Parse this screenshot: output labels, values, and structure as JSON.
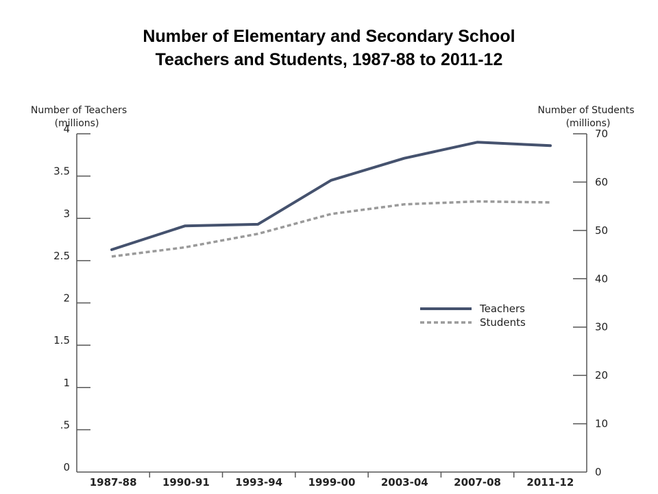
{
  "chart_data": {
    "type": "line",
    "title_line1": "Number of Elementary and Secondary School",
    "title_line2": "Teachers and Students, 1987-88 to 2011-12",
    "left_axis_title_line1": "Number of Teachers",
    "left_axis_title_line2": "(millions)",
    "right_axis_title_line1": "Number of Students",
    "right_axis_title_line2": "(millions)",
    "categories": [
      "1987-88",
      "1990-91",
      "1993-94",
      "1999-00",
      "2003-04",
      "2007-08",
      "2011-12"
    ],
    "left_ticks": [
      "0",
      ".5",
      "1",
      "1.5",
      "2",
      "2.5",
      "3",
      "3.5",
      "4"
    ],
    "left_tick_values": [
      0,
      0.5,
      1,
      1.5,
      2,
      2.5,
      3,
      3.5,
      4
    ],
    "right_ticks": [
      "0",
      "10",
      "20",
      "30",
      "40",
      "50",
      "60",
      "70"
    ],
    "right_tick_values": [
      0,
      10,
      20,
      30,
      40,
      50,
      60,
      70
    ],
    "left_ylim": [
      0,
      4
    ],
    "right_ylim": [
      0,
      70
    ],
    "series": [
      {
        "name": "Teachers",
        "axis": "left",
        "color": "#45526e",
        "style": "solid",
        "values": [
          2.63,
          2.91,
          2.93,
          3.45,
          3.71,
          3.9,
          3.86
        ]
      },
      {
        "name": "Students",
        "axis": "right",
        "color": "#9a9a9a",
        "style": "dashed",
        "values": [
          44.6,
          46.5,
          49.3,
          53.4,
          55.4,
          56.0,
          55.8
        ]
      }
    ],
    "legend_position": "right-middle",
    "grid": false
  }
}
